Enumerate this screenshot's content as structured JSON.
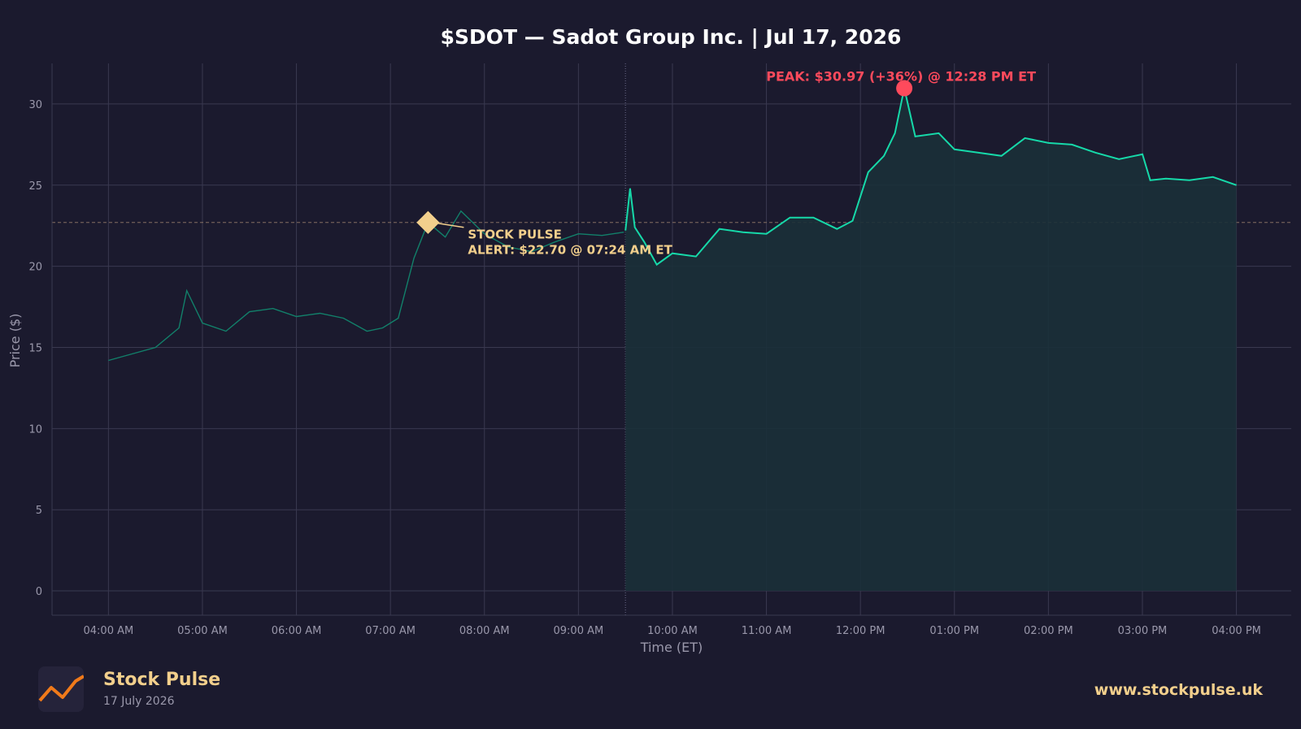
{
  "chart_data": {
    "type": "line",
    "title": "$SDOT — Sadot Group Inc.  |  Jul 17, 2026",
    "xlabel": "Time (ET)",
    "ylabel": "Price ($)",
    "ylim": [
      -1.5,
      32.5
    ],
    "yticks": [
      0,
      5,
      10,
      15,
      20,
      25,
      30
    ],
    "xlim": [
      "03:24",
      "16:35"
    ],
    "xticks": [
      "04:00",
      "05:00",
      "06:00",
      "07:00",
      "08:00",
      "09:00",
      "10:00",
      "11:00",
      "12:00",
      "13:00",
      "14:00",
      "15:00",
      "16:00"
    ],
    "xtick_labels": [
      "04:00 AM",
      "05:00 AM",
      "06:00 AM",
      "07:00 AM",
      "08:00 AM",
      "09:00 AM",
      "10:00 AM",
      "11:00 AM",
      "12:00 PM",
      "01:00 PM",
      "02:00 PM",
      "03:00 PM",
      "04:00 PM"
    ],
    "grid": true,
    "market_open": "09:30",
    "alert_line_value": 22.7,
    "series": [
      {
        "segment": "premarket",
        "x": [
          "04:00",
          "04:15",
          "04:30",
          "04:45",
          "04:50",
          "05:00",
          "05:15",
          "05:30",
          "05:45",
          "06:00",
          "06:15",
          "06:30",
          "06:45",
          "06:55",
          "07:05",
          "07:15",
          "07:24",
          "07:35",
          "07:45",
          "08:00",
          "08:15",
          "08:30",
          "08:45",
          "09:00",
          "09:15",
          "09:29"
        ],
        "y": [
          14.2,
          14.6,
          15.0,
          16.2,
          18.5,
          16.5,
          16.0,
          17.2,
          17.4,
          16.9,
          17.1,
          16.8,
          16.0,
          16.2,
          16.8,
          20.5,
          22.7,
          21.8,
          23.4,
          22.0,
          21.2,
          20.9,
          21.5,
          22.0,
          21.9,
          22.1
        ]
      },
      {
        "segment": "regular",
        "x": [
          "09:30",
          "09:33",
          "09:36",
          "09:42",
          "09:50",
          "10:00",
          "10:15",
          "10:30",
          "10:45",
          "11:00",
          "11:15",
          "11:30",
          "11:45",
          "11:55",
          "12:05",
          "12:15",
          "12:22",
          "12:28",
          "12:35",
          "12:50",
          "13:00",
          "13:15",
          "13:30",
          "13:45",
          "14:00",
          "14:15",
          "14:30",
          "14:45",
          "15:00",
          "15:05",
          "15:15",
          "15:30",
          "15:45",
          "16:00"
        ],
        "y": [
          22.2,
          24.8,
          22.4,
          21.5,
          20.1,
          20.8,
          20.6,
          22.3,
          22.1,
          22.0,
          23.0,
          23.0,
          22.3,
          22.8,
          25.8,
          26.8,
          28.2,
          30.97,
          28.0,
          28.2,
          27.2,
          27.0,
          26.8,
          27.9,
          27.6,
          27.5,
          27.0,
          26.6,
          26.9,
          25.3,
          25.4,
          25.3,
          25.5,
          25.0
        ]
      }
    ],
    "annotations": {
      "alert": {
        "line1": "STOCK PULSE",
        "line2": "ALERT: $22.70 @ 07:24 AM ET",
        "x": "07:24",
        "y": 22.7
      },
      "peak": {
        "text": "PEAK: $30.97 (+36%) @ 12:28 PM ET",
        "x": "12:28",
        "y": 30.97
      }
    },
    "colors": {
      "background": "#1b1a2e",
      "grid": "#3a3950",
      "line": "#16d9a9",
      "premarket_line": "#12806a",
      "fill": "#1b3038",
      "alert": "#f2cf8c",
      "peak": "#ff4a5c",
      "axis_text": "#9a98ab"
    }
  },
  "footer": {
    "brand": "Stock Pulse",
    "date": "17 July 2026",
    "site": "www.stockpulse.uk",
    "logo_icon": "chart-trend-icon"
  }
}
